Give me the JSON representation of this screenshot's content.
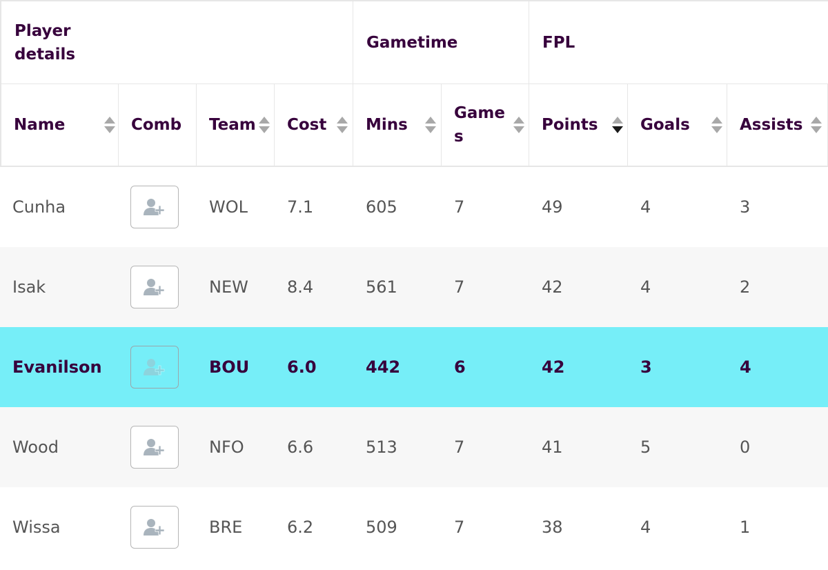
{
  "groups": {
    "player_details": "Player details",
    "gametime": "Gametime",
    "fpl": "FPL"
  },
  "columns": {
    "name": "Name",
    "comb": "Comb",
    "team": "Team",
    "cost": "Cost",
    "mins": "Mins",
    "games": "Games",
    "points": "Points",
    "goals": "Goals",
    "assists": "Assists"
  },
  "sort": {
    "active_column": "Points",
    "direction": "descending"
  },
  "icons": {
    "sort": "sort-arrows-icon",
    "comb": "add-user-icon"
  },
  "colors": {
    "highlight_row": "#76eef8",
    "header_text": "#37003c",
    "alt_row": "#f7f7f7"
  },
  "rows": [
    {
      "name": "Cunha",
      "team": "WOL",
      "cost": "7.1",
      "mins": "605",
      "games": "7",
      "points": "49",
      "goals": "4",
      "assists": "3"
    },
    {
      "name": "Isak",
      "team": "NEW",
      "cost": "8.4",
      "mins": "561",
      "games": "7",
      "points": "42",
      "goals": "4",
      "assists": "2"
    },
    {
      "name": "Evanilson",
      "team": "BOU",
      "cost": "6.0",
      "mins": "442",
      "games": "6",
      "points": "42",
      "goals": "3",
      "assists": "4"
    },
    {
      "name": "Wood",
      "team": "NFO",
      "cost": "6.6",
      "mins": "513",
      "games": "7",
      "points": "41",
      "goals": "5",
      "assists": "0"
    },
    {
      "name": "Wissa",
      "team": "BRE",
      "cost": "6.2",
      "mins": "509",
      "games": "7",
      "points": "38",
      "goals": "4",
      "assists": "1"
    }
  ]
}
